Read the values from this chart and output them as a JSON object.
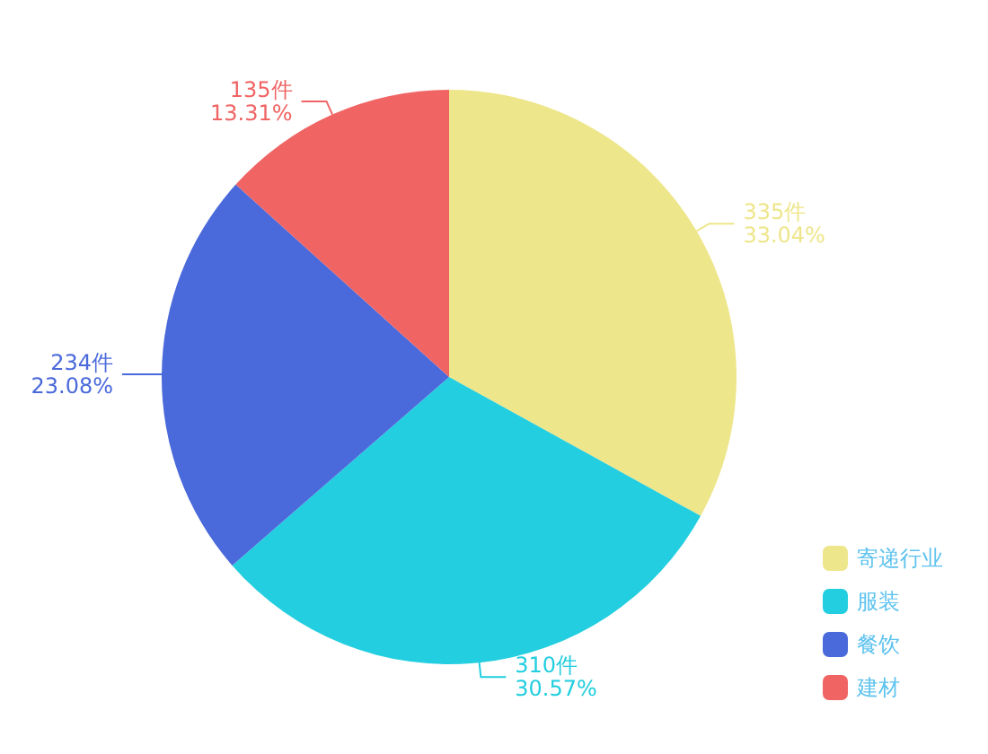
{
  "chart_data": {
    "type": "pie",
    "categories": [
      "寄递行业",
      "服装",
      "餐饮",
      "建材"
    ],
    "values": [
      335,
      310,
      234,
      135
    ],
    "colors": [
      "#eee68a",
      "#22cedf",
      "#4a69db",
      "#f06464"
    ],
    "value_labels": [
      "335件\n33.04%",
      "310件\n30.57%",
      "234件\n23.08%",
      "135件\n13.31%"
    ],
    "legend": "bottom right"
  }
}
